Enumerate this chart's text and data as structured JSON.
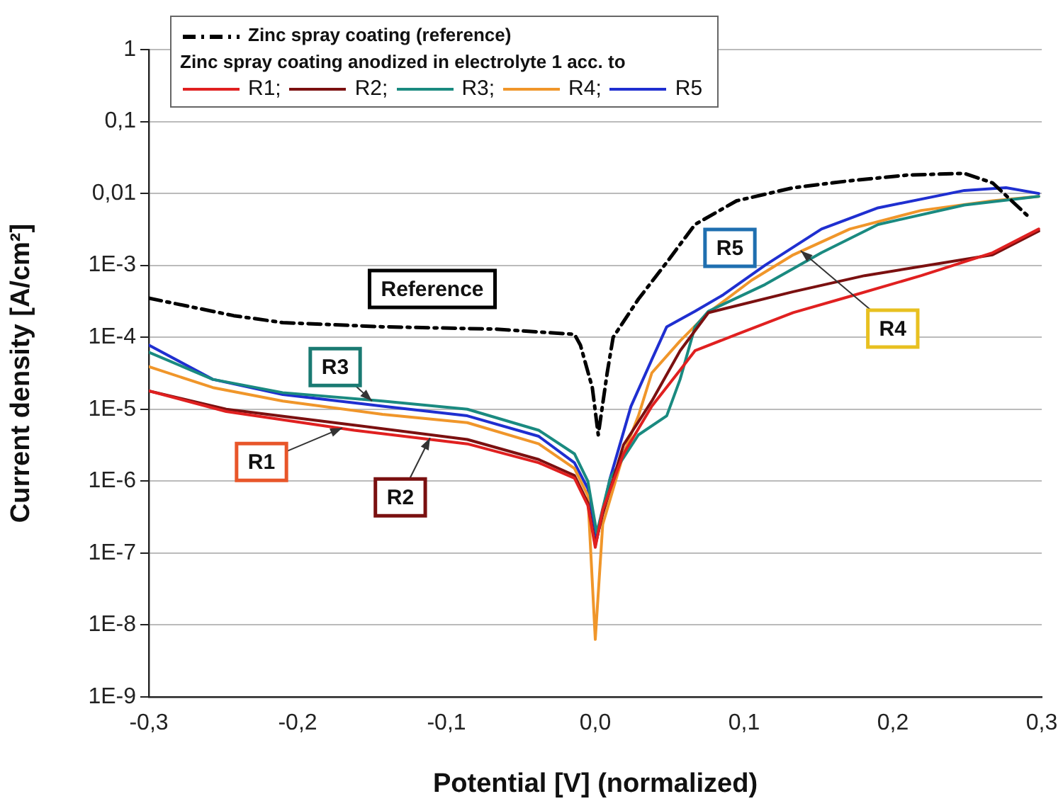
{
  "chart_data": {
    "type": "line",
    "xlabel": "Potential [V] (normalized)",
    "ylabel": "Current density [A/cm²]",
    "legend_title": "Zinc spray coating anodized in electrolyte 1 acc. to",
    "log": "y",
    "grid": "y",
    "legend": "top left",
    "marker": "none",
    "xlim": [
      -0.3,
      0.3
    ],
    "xticks": [
      {
        "value": -0.3,
        "label": "-0,3"
      },
      {
        "value": -0.2,
        "label": "-0,2"
      },
      {
        "value": -0.1,
        "label": "-0,1"
      },
      {
        "value": 0,
        "label": "0,0"
      },
      {
        "value": 0.1,
        "label": "0,1"
      },
      {
        "value": 0.2,
        "label": "0,2"
      },
      {
        "value": 0.3,
        "label": "0,3"
      }
    ],
    "ylim": [
      1e-09,
      1
    ],
    "yticks": [
      {
        "value": 1e-09,
        "label": "1E-9"
      },
      {
        "value": 1e-08,
        "label": "1E-8"
      },
      {
        "value": 1e-07,
        "label": "1E-7"
      },
      {
        "value": 1e-06,
        "label": "1E-6"
      },
      {
        "value": 1e-05,
        "label": "1E-5"
      },
      {
        "value": 0.0001,
        "label": "1E-4"
      },
      {
        "value": 0.001,
        "label": "1E-3"
      },
      {
        "value": 0.01,
        "label": "0,01"
      },
      {
        "value": 0.1,
        "label": "0,1"
      },
      {
        "value": 1,
        "label": "1"
      }
    ],
    "series": [
      {
        "name": "Zinc spray coating (reference)",
        "color": "#000000",
        "line_style": "dashed",
        "x": [
          -0.3,
          -0.243,
          -0.21,
          -0.143,
          -0.067,
          -0.014,
          -0.01,
          -0.002,
          0.002,
          0.008,
          0.012,
          0.029,
          0.048,
          0.067,
          0.095,
          0.133,
          0.171,
          0.21,
          0.248,
          0.267,
          0.29
        ],
        "values": [
          0.00035,
          0.0002,
          0.00016,
          0.00014,
          0.00013,
          0.00011,
          7.8e-05,
          2e-05,
          4.4e-06,
          3.2e-05,
          0.0001,
          0.00034,
          0.0011,
          0.0037,
          0.0079,
          0.012,
          0.015,
          0.018,
          0.019,
          0.014,
          0.005
        ]
      },
      {
        "name": "R1;",
        "color": "#e02020",
        "x": [
          -0.3,
          -0.248,
          -0.162,
          -0.086,
          -0.038,
          -0.014,
          -0.005,
          0,
          0.005,
          0.019,
          0.038,
          0.057,
          0.067,
          0.095,
          0.133,
          0.171,
          0.219,
          0.267,
          0.298
        ],
        "values": [
          1.8e-05,
          9.3e-06,
          5.1e-06,
          3.3e-06,
          1.8e-06,
          1.1e-06,
          4.6e-07,
          1.2e-07,
          4e-07,
          2.4e-06,
          1.1e-05,
          3.5e-05,
          6.5e-05,
          0.00011,
          0.00022,
          0.00037,
          0.00072,
          0.0015,
          0.0032
        ]
      },
      {
        "name": "R2;",
        "color": "#7b1010",
        "x": [
          -0.3,
          -0.248,
          -0.162,
          -0.086,
          -0.038,
          -0.014,
          -0.005,
          0,
          0.005,
          0.019,
          0.038,
          0.057,
          0.076,
          0.133,
          0.181,
          0.267,
          0.298
        ],
        "values": [
          1.8e-05,
          1e-05,
          6e-06,
          3.8e-06,
          2e-06,
          1.2e-06,
          5e-07,
          1.3e-07,
          3.5e-07,
          3.2e-06,
          1.3e-05,
          6.5e-05,
          0.00022,
          0.00043,
          0.00072,
          0.0014,
          0.003
        ]
      },
      {
        "name": "R3;",
        "color": "#1a8a80",
        "x": [
          -0.3,
          -0.257,
          -0.21,
          -0.143,
          -0.086,
          -0.038,
          -0.014,
          -0.005,
          0.001,
          0.01,
          0.029,
          0.048,
          0.057,
          0.067,
          0.076,
          0.114,
          0.152,
          0.19,
          0.248,
          0.298
        ],
        "values": [
          6.2e-05,
          2.6e-05,
          1.7e-05,
          1.3e-05,
          1e-05,
          5.1e-06,
          2.4e-06,
          1e-06,
          1.9e-07,
          1.1e-06,
          4.4e-06,
          8.1e-06,
          2.6e-05,
          0.00014,
          0.00023,
          0.00054,
          0.0015,
          0.0037,
          0.0069,
          0.0091
        ]
      },
      {
        "name": "R4;",
        "color": "#f0962a",
        "x": [
          -0.3,
          -0.257,
          -0.21,
          -0.143,
          -0.086,
          -0.038,
          -0.014,
          -0.005,
          0,
          0.005,
          0.019,
          0.029,
          0.038,
          0.057,
          0.076,
          0.105,
          0.133,
          0.171,
          0.219,
          0.267,
          0.298
        ],
        "values": [
          3.9e-05,
          2e-05,
          1.3e-05,
          8.5e-06,
          6.5e-06,
          3.3e-06,
          1.5e-06,
          6.3e-07,
          6.3e-09,
          2.5e-07,
          2.4e-06,
          8.1e-06,
          3.2e-05,
          8.9e-05,
          0.00022,
          0.00062,
          0.0014,
          0.0032,
          0.0058,
          0.0079,
          0.0091
        ]
      },
      {
        "name": "R5",
        "color": "#1f2fd0",
        "x": [
          -0.3,
          -0.257,
          -0.21,
          -0.143,
          -0.086,
          -0.038,
          -0.014,
          -0.005,
          0.001,
          0.01,
          0.024,
          0.038,
          0.048,
          0.067,
          0.086,
          0.114,
          0.152,
          0.19,
          0.248,
          0.276,
          0.298
        ],
        "values": [
          7.8e-05,
          2.6e-05,
          1.6e-05,
          1.1e-05,
          8.1e-06,
          4.2e-06,
          1.8e-06,
          7.9e-07,
          1.6e-07,
          1.1e-06,
          1.1e-05,
          4.9e-05,
          0.00014,
          0.00023,
          0.00039,
          0.001,
          0.0032,
          0.0063,
          0.011,
          0.012,
          0.01
        ]
      }
    ],
    "annotations": [
      "Reference",
      {
        "text": "R3",
        "x": -0.15,
        "y": 1.3e-05
      },
      {
        "text": "R1",
        "x": -0.17,
        "y": 5.5e-06
      },
      {
        "text": "R2",
        "x": -0.111,
        "y": 4e-06
      },
      "R5",
      {
        "text": "R4",
        "x": 0.138,
        "y": 0.0016
      }
    ]
  }
}
